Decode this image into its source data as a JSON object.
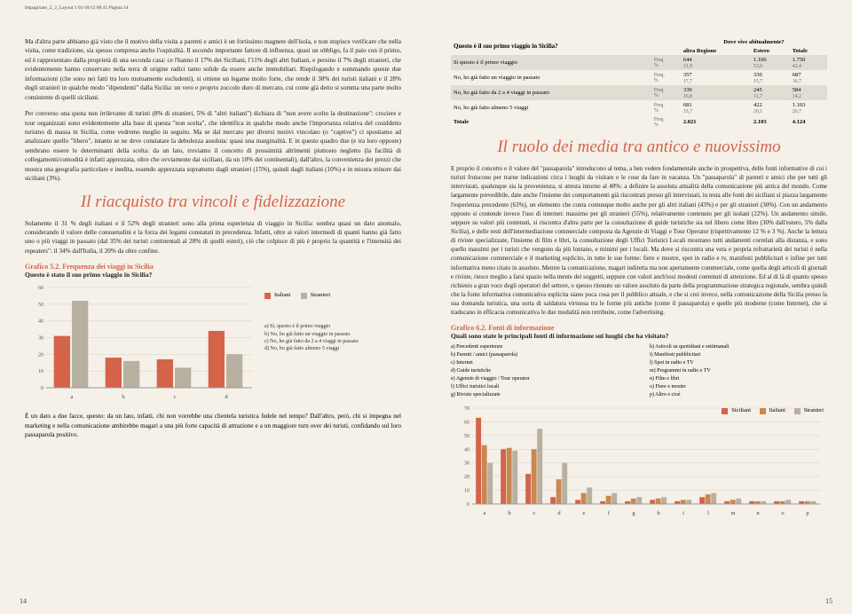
{
  "header": "Impaginato_2_2_Layout 1  01/10/12  08:45  Pagina 14",
  "left": {
    "para1": "Ma d'altra parte abbiamo già visto che il motivo della visita a parenti e amici è un fortissimo magnete dell'isola, e non stupisce verificare che nella visita, come tradizione, sia spesso compresa anche l'ospitalità. Il secondo importante fattore di influenza, quasi un obbligo, fa il paio con il primo, ed è rappresentato dalla proprietà di una seconda casa: ce l'hanno il 17% dei Siciliani, l'11% degli altri Italiani, e persino il 7% degli stranieri, che evidentemente hanno conservato nella terra di origine radici tanto solide da essere anche immobiliari. Riepilogando e sommando queste due informazioni (che sono nei fatti tra loro mutuamente escludenti), si ottiene un legame molto forte, che rende il 38% dei turisti italiani e il 28% degli stranieri in qualche modo \"dipendenti\" dalla Sicilia: un vero e proprio zoccolo duro di mercato, cui come già detto si somma una parte molto consistente di quelli siciliani.",
    "para2": "Per converso una quota non irrilevante di turisti (8% di stranieri, 5% di \"altri italiani\") dichiara di \"non avere scelto la destinazione\": crociere e tour organizzati sono evidentemente alla base di questa \"non scelta\", che identifica in qualche modo anche l'importanza relativa del cosiddetto turismo di massa in Sicilia, come vedremo meglio in seguito. Ma se dal mercato per diversi motivi vincolato (o \"captive\") ci spostiamo ad analizzare quello \"libero\", intanto se ne deve constatare la debolezza assoluta: quasi una marginalità. E in questo quadro due (e tra loro opposte) sembrano essere le determinanti della scelta: da un lato, troviamo il concetto di prossimità altrimenti piuttosto negletto (la facilità di collegamenti/comodità è infatti apprezzata, oltre che ovviamente dai siciliani, da un 10% dei continentali), dall'altro, la convenienza dei prezzi che mostra una geografia particolare e inedita, essendo apprezzata soprattutto dagli stranieri (15%), quindi dagli italiani (10%) e in misura minore dai siciliani (3%).",
    "section1": "Il riacquisto tra vincoli e fidelizzazione",
    "para3": "Solamente il 31 % degli italiani e il 52% degli stranieri sono alla prima esperienza di viaggio in Sicilia: sembra quasi un dato anomalo, considerando il valore delle consuetudini e la forza dei legami constatati in precedenza. Infatti, oltre ai valori intermedi di quanti hanno già fatto uno o più viaggi in passato (dal 35% dei turisti continentali al 28% di quelli esteri), ciò che colpisce di più è proprio la quantità e l'intensità dei repeaters\": il 34% dall'Italia, il 20% da oltre confine.",
    "chart52": {
      "title": "Grafico 5.2. Frequenza dei viaggi in Sicilia",
      "subtitle": "Questo è stato il suo primo viaggio in Sicilia?",
      "categories": [
        "a",
        "b",
        "c",
        "d"
      ],
      "series": [
        {
          "name": "Italiani",
          "color": "#d4634a",
          "values": [
            31,
            18,
            17,
            34
          ]
        },
        {
          "name": "Stranieri",
          "color": "#b8b0a0",
          "values": [
            52,
            16,
            12,
            20
          ]
        }
      ],
      "ylim": [
        0,
        60
      ],
      "ystep": 10,
      "captions": [
        "a) Sì, questo è il primo viaggio",
        "b) No, ho già fatto un viaggio in passato",
        "c) No, ho già fatto da 2 a 4 viaggi in passato",
        "d) No, ho già fatto almeno 5 viaggi"
      ]
    },
    "para4": "È un dato a due facce, questo: da un lato, infatti, chi non vorrebbe una clientela turistica fedele nel tempo? Dall'altro, però, chi si impegna nel marketing e nella comunicazione ambirebbe magari a una più forte capacità di attrazione e a un maggiore turn over dei turisti, confidando sul loro passaparola positivo.",
    "pageNum": "14"
  },
  "right": {
    "tableTitleLeft": "Questo è il suo primo viaggio in Sicilia?",
    "tableTitleRight": "Dove vive abitualmente?",
    "tableCols": [
      "altra Regione",
      "Estero",
      "Totale"
    ],
    "tableRows": [
      {
        "label": "Sì questo è il primo viaggio",
        "freq": [
          "644",
          "1.106",
          "1.750"
        ],
        "pct": [
          "31,9",
          "52,6",
          "42,4"
        ],
        "alt": true
      },
      {
        "label": "No, ho già fatto un viaggio in passato",
        "freq": [
          "357",
          "330",
          "687"
        ],
        "pct": [
          "17,7",
          "15,7",
          "16,7"
        ],
        "alt": false
      },
      {
        "label": "No, ho già fatto da 2 a 4 viaggi in passato",
        "freq": [
          "339",
          "245",
          "584"
        ],
        "pct": [
          "16,8",
          "11,7",
          "14,2"
        ],
        "alt": true
      },
      {
        "label": "No, ho già fatto almeno 5 viaggi",
        "freq": [
          "681",
          "422",
          "1.103"
        ],
        "pct": [
          "33,7",
          "20,1",
          "26,7"
        ],
        "alt": false
      },
      {
        "label": "Totale",
        "freq": [
          "2.021",
          "2.103",
          "4.124"
        ],
        "pct": [
          "",
          "",
          ""
        ],
        "alt": false,
        "bold": true
      }
    ],
    "section2": "Il ruolo dei media tra antico e nuovissimo",
    "para5": "E proprio il concetto e il valore del \"passaparola\" introducono al tema, a ben vedere fondamentale anche in prospettiva, delle fonti informative di cui i turisti fruiscono per trarne indicazioni circa i luoghi da visitare e le cose da fare in vacanza. Un \"passaparola\" di parenti e amici che per tutti gli intervistati, qualunque sia la provenienza, si attesta intorno al 40%: a definire la assoluta attualità della comunicazione più antica del mondo. Come largamente prevedibile, date anche l'insieme dei comportamenti già riscontrati presso gli intervistati, in testa alle fonti dei siciliani si piazza largamente l'esperienza precedente (63%), un elemento che conta comunque molto anche per gli altri italiani (43%) e per gli stranieri (30%). Con un andamento opposto si contende invece l'uso di internet: massimo per gli stranieri (55%), relativamente contenuto per gli isolani (22%). Un andamento simile, seppure su valori più contenuti, si riscontra d'altra parte per la consultazione di guide turistiche sia nel libero come libro (30% dall'estero, 5% dalla Sicilia), e delle resti dell'intermediazione commerciale composta da Agenzie di Viaggi e Tour Operator (rispettivamente 12 % e 3 %). Anche la lettura di riviste specializzate, l'insieme di film e libri, la consultazione degli Uffici Turistici Locali mostrano tutti andamenti correlati alla distanza, e sono quello massimi per i turisti che vengono da più lontano, e minimi per i locali. Ma dove si riscontra una vera e propria refrattarietà dei turisti è nella comunicazione commerciale e il marketing esplicito, in tutte le sue forme: fiere e mostre, spot in radio e tv, manifesti pubblicitari e infine per tutti informativa meno citato in assoluto. Mentre la comunicazione, magari indiretta ma non apertamente commerciale, come quella degli articoli di giornali e riviste, riesce meglio a farsi spazio nella mente dei soggetti, seppure con valori anch'essi modesti contenuti di attenzione. Ed al di là di quanto spesso richiesto a gran voce degli operatori del settore, o spesso ritenuto un valore assoluto da parte della programmazione strategica regionale, sembra quindi che la fonte informativa comunicativa esplicita siano poca cosa per il pubblico attuale, e che si crei invece, nella comunicazione della Sicilia presso la sua domanda turistica, una sorta di saldatura virtuosa tra le forme più antiche (come il passaparola) e quelle più moderne (come Internet), che si traducano in efficacia comunicativa le due modalità non retribuite, come l'advertising.",
    "chart62": {
      "title": "Grafico 6.2. Fonti di informazione",
      "subtitle": "Quali sono state le principali fonti di informazione sui luoghi che ha visitato?",
      "categories": [
        "a",
        "b",
        "c",
        "d",
        "e",
        "f",
        "g",
        "h",
        "i",
        "l",
        "m",
        "n",
        "o",
        "p"
      ],
      "series": [
        {
          "name": "Siciliani",
          "color": "#d4634a"
        },
        {
          "name": "Italiani",
          "color": "#c88850"
        },
        {
          "name": "Stranieri",
          "color": "#b8b0a0"
        }
      ],
      "values": {
        "Siciliani": [
          63,
          40,
          22,
          5,
          3,
          2,
          2,
          3,
          2,
          5,
          2,
          2,
          2,
          2
        ],
        "Italiani": [
          43,
          41,
          40,
          18,
          8,
          6,
          4,
          4,
          3,
          7,
          3,
          2,
          2,
          2
        ],
        "Stranieri": [
          30,
          39,
          55,
          30,
          12,
          8,
          5,
          5,
          3,
          8,
          4,
          2,
          3,
          2
        ]
      },
      "ylim": [
        0,
        70
      ],
      "ystep": 10,
      "captionsL": [
        "a) Precedenti esperienze",
        "b) Parenti / amici (passaparola)",
        "c) Internet",
        "d) Guide turistiche",
        "e) Agenzie di viaggio / Tour operator",
        "f) Uffici turistici locali",
        "g) Riviste specializzate"
      ],
      "captionsR": [
        "h) Articoli su quotidiani e settimanali",
        "i) Manifesti pubblicitari",
        "l) Spot in radio e TV",
        "m) Programmi in radio e TV",
        "n) Film e libri",
        "o) Fiere e mostre",
        "p) Altro e cioè"
      ]
    },
    "pageNum": "15"
  }
}
